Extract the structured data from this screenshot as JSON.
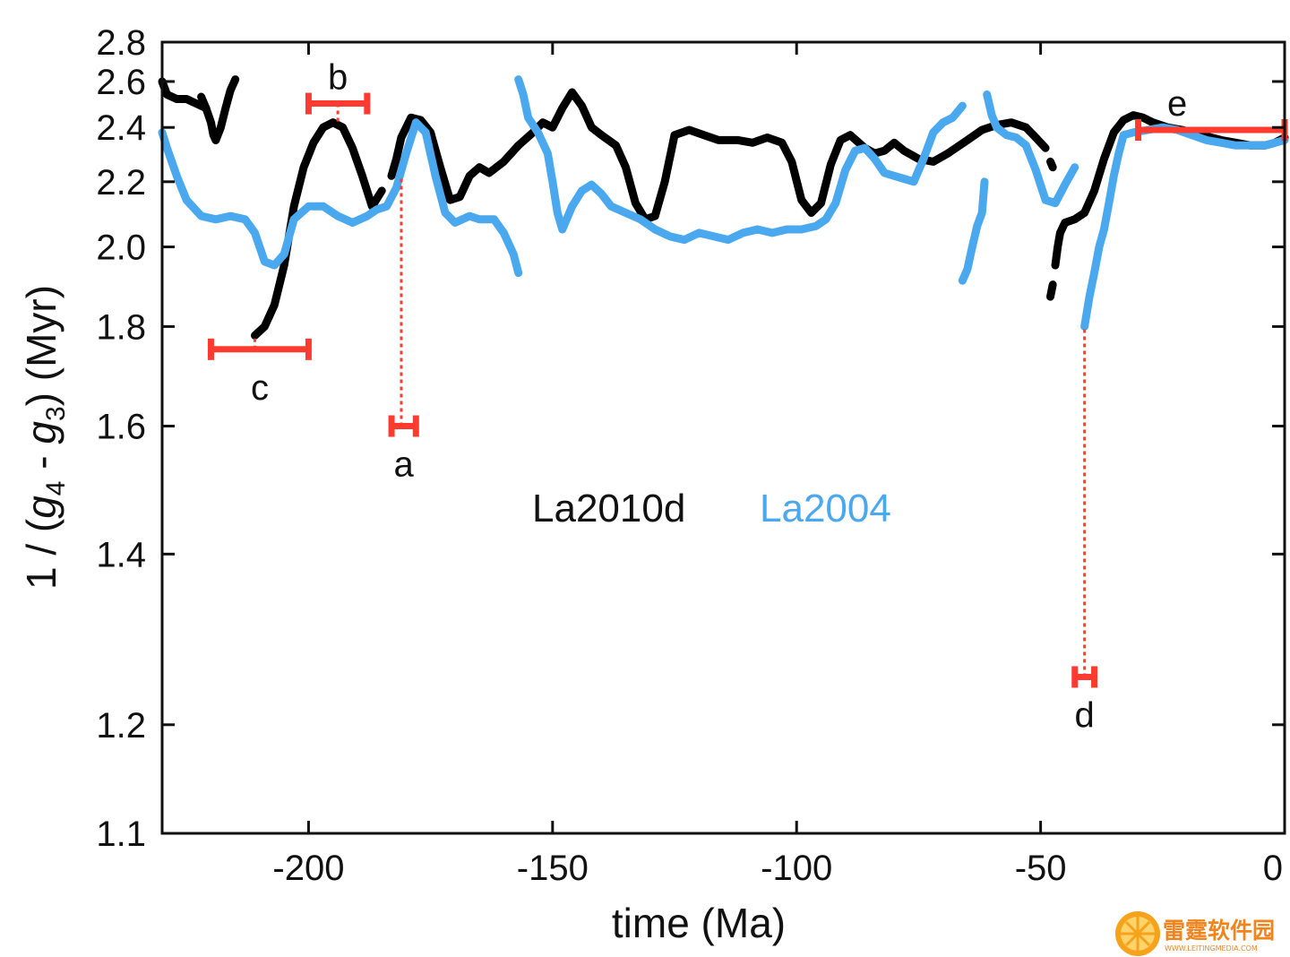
{
  "chart_data": {
    "type": "line",
    "xlabel": "time (Ma)",
    "ylabel_pre": "1 / (",
    "ylabel_g4": "g",
    "ylabel_sub4": "4",
    "ylabel_mid": " - ",
    "ylabel_g3": "g",
    "ylabel_sub3": "3",
    "ylabel_post": ")  (Myr)",
    "xlim": [
      -230,
      0
    ],
    "ylim_ticks": [
      "1.1",
      "1.2",
      "1.4",
      "1.6",
      "1.8",
      "2.0",
      "2.2",
      "2.4",
      "2.6",
      "2.8"
    ],
    "x_ticks": [
      -200,
      -150,
      -100,
      -50,
      0
    ],
    "x_tick_labels": [
      "-200",
      "-150",
      "-100",
      "-50",
      "0"
    ],
    "y_scale": "reciprocal (linear in g4 - g3)",
    "grid": false,
    "legend_position": "center",
    "series": [
      {
        "name": "La2010d",
        "color": "#000000",
        "segments": [
          [
            [
              -230,
              2.6
            ],
            [
              -229,
              2.54
            ],
            [
              -227,
              2.52
            ],
            [
              -225,
              2.52
            ],
            [
              -223,
              2.5
            ],
            [
              -221,
              2.48
            ]
          ],
          [
            [
              -222,
              2.53
            ],
            [
              -221,
              2.48
            ],
            [
              -220,
              2.42
            ],
            [
              -219.5,
              2.37
            ],
            [
              -219,
              2.35
            ]
          ],
          [
            [
              -219,
              2.35
            ],
            [
              -218,
              2.4
            ],
            [
              -217,
              2.48
            ],
            [
              -216,
              2.56
            ],
            [
              -215,
              2.61
            ]
          ],
          [
            [
              -211,
              1.78
            ],
            [
              -209,
              1.8
            ],
            [
              -207,
              1.85
            ],
            [
              -205,
              1.95
            ],
            [
              -203,
              2.12
            ],
            [
              -201,
              2.25
            ],
            [
              -199,
              2.34
            ],
            [
              -197,
              2.4
            ],
            [
              -195,
              2.42
            ],
            [
              -193,
              2.4
            ],
            [
              -191,
              2.32
            ],
            [
              -189,
              2.22
            ],
            [
              -187,
              2.12
            ],
            [
              -185,
              2.17
            ]
          ],
          [
            [
              -183,
              2.22
            ],
            [
              -182,
              2.28
            ],
            [
              -181,
              2.36
            ],
            [
              -179,
              2.44
            ],
            [
              -177,
              2.43
            ],
            [
              -175,
              2.38
            ],
            [
              -173,
              2.25
            ],
            [
              -171,
              2.14
            ],
            [
              -169,
              2.15
            ],
            [
              -167,
              2.22
            ],
            [
              -165,
              2.25
            ],
            [
              -163,
              2.23
            ],
            [
              -160,
              2.27
            ],
            [
              -157,
              2.33
            ],
            [
              -154,
              2.38
            ],
            [
              -152,
              2.42
            ],
            [
              -150,
              2.4
            ],
            [
              -148,
              2.48
            ],
            [
              -146,
              2.55
            ],
            [
              -144,
              2.49
            ],
            [
              -142,
              2.4
            ],
            [
              -140,
              2.37
            ],
            [
              -137,
              2.33
            ],
            [
              -135,
              2.25
            ],
            [
              -133,
              2.13
            ],
            [
              -131,
              2.08
            ],
            [
              -129,
              2.09
            ],
            [
              -127,
              2.2
            ],
            [
              -125,
              2.37
            ],
            [
              -122,
              2.39
            ],
            [
              -119,
              2.37
            ],
            [
              -116,
              2.35
            ],
            [
              -112,
              2.35
            ],
            [
              -109,
              2.34
            ],
            [
              -106,
              2.36
            ],
            [
              -103,
              2.34
            ],
            [
              -101,
              2.27
            ],
            [
              -99,
              2.14
            ],
            [
              -97,
              2.1
            ],
            [
              -95,
              2.13
            ],
            [
              -93,
              2.26
            ],
            [
              -91,
              2.35
            ],
            [
              -89,
              2.37
            ],
            [
              -86,
              2.32
            ],
            [
              -84,
              2.3
            ],
            [
              -82,
              2.31
            ],
            [
              -80,
              2.34
            ],
            [
              -78,
              2.31
            ],
            [
              -75,
              2.28
            ],
            [
              -72,
              2.27
            ],
            [
              -69,
              2.3
            ],
            [
              -65,
              2.35
            ],
            [
              -62,
              2.39
            ],
            [
              -59,
              2.41
            ],
            [
              -56,
              2.42
            ],
            [
              -53,
              2.4
            ],
            [
              -51,
              2.36
            ],
            [
              -49,
              2.32
            ]
          ],
          [
            [
              -48,
              2.27
            ],
            [
              -47.5,
              2.25
            ]
          ],
          [
            [
              -48,
              1.87
            ],
            [
              -47.5,
              1.9
            ]
          ],
          [
            [
              -47,
              1.95
            ],
            [
              -46.5,
              2.0
            ],
            [
              -46,
              2.04
            ],
            [
              -45,
              2.07
            ],
            [
              -43,
              2.08
            ],
            [
              -41,
              2.1
            ],
            [
              -39,
              2.17
            ],
            [
              -37,
              2.28
            ],
            [
              -35,
              2.38
            ],
            [
              -33,
              2.43
            ],
            [
              -31,
              2.45
            ],
            [
              -29,
              2.44
            ],
            [
              -27,
              2.42
            ],
            [
              -24,
              2.4
            ],
            [
              -21,
              2.39
            ],
            [
              -17,
              2.37
            ],
            [
              -13,
              2.35
            ],
            [
              -10,
              2.34
            ],
            [
              -7,
              2.33
            ],
            [
              -4,
              2.33
            ],
            [
              -2,
              2.34
            ],
            [
              0,
              2.36
            ]
          ]
        ]
      },
      {
        "name": "La2004",
        "color": "#4aa8ee",
        "segments": [
          [
            [
              -230,
              2.38
            ],
            [
              -229,
              2.32
            ],
            [
              -227,
              2.22
            ],
            [
              -225,
              2.14
            ],
            [
              -222,
              2.09
            ],
            [
              -219,
              2.08
            ],
            [
              -216,
              2.09
            ],
            [
              -213,
              2.08
            ],
            [
              -211,
              2.04
            ],
            [
              -209,
              1.96
            ],
            [
              -207,
              1.95
            ],
            [
              -205,
              1.98
            ],
            [
              -203,
              2.08
            ],
            [
              -200,
              2.12
            ],
            [
              -197,
              2.12
            ],
            [
              -194,
              2.09
            ],
            [
              -191,
              2.07
            ],
            [
              -188,
              2.09
            ],
            [
              -186,
              2.11
            ],
            [
              -184,
              2.12
            ],
            [
              -182,
              2.18
            ],
            [
              -180,
              2.3
            ],
            [
              -178,
              2.42
            ],
            [
              -176,
              2.38
            ],
            [
              -174,
              2.22
            ],
            [
              -172,
              2.1
            ],
            [
              -170,
              2.07
            ],
            [
              -167,
              2.09
            ],
            [
              -165,
              2.08
            ],
            [
              -162,
              2.08
            ],
            [
              -160,
              2.04
            ],
            [
              -158,
              1.98
            ],
            [
              -157,
              1.93
            ]
          ],
          [
            [
              -157,
              2.61
            ],
            [
              -156,
              2.54
            ],
            [
              -155,
              2.44
            ],
            [
              -153,
              2.38
            ],
            [
              -151,
              2.3
            ],
            [
              -150,
              2.2
            ],
            [
              -149,
              2.1
            ],
            [
              -148,
              2.05
            ],
            [
              -146,
              2.12
            ],
            [
              -144,
              2.17
            ],
            [
              -142,
              2.19
            ],
            [
              -140,
              2.16
            ],
            [
              -138,
              2.12
            ],
            [
              -135,
              2.1
            ],
            [
              -132,
              2.08
            ],
            [
              -129,
              2.05
            ],
            [
              -126,
              2.03
            ],
            [
              -123,
              2.02
            ],
            [
              -120,
              2.04
            ],
            [
              -117,
              2.03
            ],
            [
              -114,
              2.02
            ],
            [
              -111,
              2.04
            ],
            [
              -108,
              2.05
            ],
            [
              -105,
              2.04
            ],
            [
              -102,
              2.05
            ],
            [
              -99,
              2.05
            ],
            [
              -96,
              2.06
            ],
            [
              -94,
              2.08
            ],
            [
              -92,
              2.13
            ],
            [
              -90,
              2.24
            ],
            [
              -88,
              2.31
            ],
            [
              -86,
              2.32
            ],
            [
              -84,
              2.28
            ],
            [
              -82,
              2.23
            ],
            [
              -80,
              2.22
            ],
            [
              -78,
              2.21
            ],
            [
              -76,
              2.2
            ],
            [
              -74,
              2.28
            ],
            [
              -72,
              2.38
            ],
            [
              -70,
              2.42
            ],
            [
              -68,
              2.44
            ],
            [
              -66,
              2.49
            ]
          ],
          [
            [
              -66,
              1.91
            ],
            [
              -65,
              1.94
            ],
            [
              -64,
              2.0
            ],
            [
              -63,
              2.06
            ],
            [
              -62,
              2.1
            ],
            [
              -61.5,
              2.2
            ]
          ],
          [
            [
              -61,
              2.54
            ],
            [
              -60,
              2.45
            ],
            [
              -59,
              2.4
            ],
            [
              -57,
              2.37
            ],
            [
              -55,
              2.36
            ],
            [
              -53,
              2.33
            ],
            [
              -51,
              2.24
            ],
            [
              -49,
              2.14
            ],
            [
              -47,
              2.13
            ],
            [
              -45,
              2.19
            ],
            [
              -43,
              2.25
            ]
          ],
          [
            [
              -41,
              1.8
            ],
            [
              -40,
              1.87
            ],
            [
              -39,
              1.93
            ],
            [
              -38,
              2.0
            ],
            [
              -37,
              2.05
            ],
            [
              -36,
              2.13
            ],
            [
              -35,
              2.22
            ],
            [
              -34,
              2.3
            ],
            [
              -33,
              2.37
            ],
            [
              -31,
              2.38
            ],
            [
              -28,
              2.39
            ],
            [
              -25,
              2.4
            ],
            [
              -22,
              2.39
            ],
            [
              -19,
              2.37
            ],
            [
              -16,
              2.35
            ],
            [
              -13,
              2.34
            ],
            [
              -10,
              2.33
            ],
            [
              -7,
              2.33
            ],
            [
              -4,
              2.33
            ],
            [
              -2,
              2.34
            ],
            [
              0,
              2.35
            ]
          ]
        ]
      }
    ],
    "annotations": [
      {
        "label": "a",
        "x_range": [
          -183,
          -178
        ],
        "y": 1.6,
        "link_x": -181,
        "link_y_to": 2.22
      },
      {
        "label": "b",
        "x_range": [
          -200,
          -188
        ],
        "y": 2.5,
        "link_x": -194,
        "link_y_to": 2.42
      },
      {
        "label": "c",
        "x_range": [
          -220,
          -200
        ],
        "y": 1.75,
        "link_x": -211,
        "link_y_to": 1.78
      },
      {
        "label": "d",
        "x_range": [
          -43,
          -39
        ],
        "y": 1.25,
        "link_x": -41,
        "link_y_to": 1.8
      },
      {
        "label": "e",
        "x_range": [
          -30,
          0
        ],
        "y": 2.39,
        "link_x": null,
        "link_y_to": null
      }
    ],
    "annotation_color": "#ff3b2f"
  },
  "watermark": {
    "name": "雷霆软件园",
    "url": "WWW.LEITINGMEDIA.COM",
    "color": "#f0851f"
  }
}
